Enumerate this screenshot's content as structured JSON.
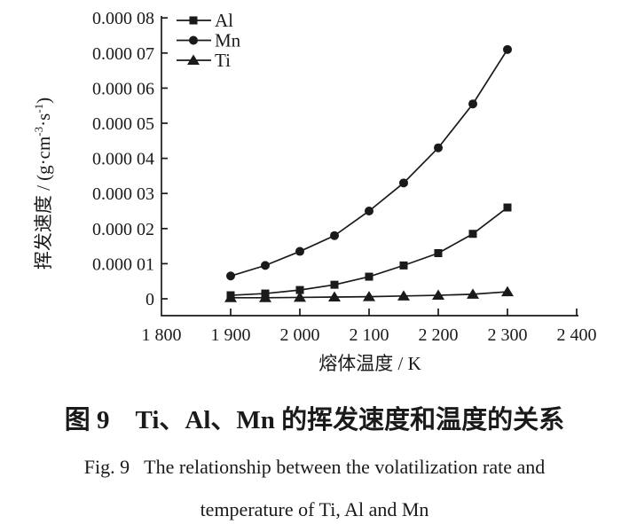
{
  "figure": {
    "caption_cn": "图 9　Ti、Al、Mn 的挥发速度和温度的关系",
    "caption_en_line1": "Fig. 9   The relationship between the volatilization rate and",
    "caption_en_line2": "temperature of Ti, Al and Mn"
  },
  "axes": {
    "x_title": "熔体温度 / K",
    "y_title_parts": {
      "p1": "挥发速度 / (g·cm",
      "sup1": "-3",
      "p2": "·s",
      "sup2": "-1",
      "p3": ")"
    }
  },
  "chart_data": {
    "type": "line",
    "title": "图 9 Ti、Al、Mn 的挥发速度和温度的关系",
    "xlabel": "熔体温度 / K",
    "ylabel": "挥发速度 / (g·cm⁻³·s⁻¹)",
    "x": [
      1900,
      1950,
      2000,
      2050,
      2100,
      2150,
      2200,
      2250,
      2300
    ],
    "series": [
      {
        "name": "Al",
        "marker": "square",
        "values": [
          1e-06,
          1.5e-06,
          2.5e-06,
          4e-06,
          6.3e-06,
          9.5e-06,
          1.3e-05,
          1.85e-05,
          2.6e-05
        ]
      },
      {
        "name": "Mn",
        "marker": "circle",
        "values": [
          6.5e-06,
          9.5e-06,
          1.35e-05,
          1.8e-05,
          2.5e-05,
          3.3e-05,
          4.3e-05,
          5.55e-05,
          7.1e-05
        ]
      },
      {
        "name": "Ti",
        "marker": "triangle",
        "values": [
          3e-07,
          3e-07,
          4e-07,
          5e-07,
          6e-07,
          8e-07,
          1e-06,
          1.3e-06,
          2e-06
        ]
      }
    ],
    "xlim": [
      1800,
      2400
    ],
    "ylim": [
      0,
      8e-05
    ],
    "x_ticks": [
      1800,
      1900,
      2000,
      2100,
      2200,
      2300,
      2400
    ],
    "x_tick_labels": [
      "1 800",
      "1 900",
      "2 000",
      "2 100",
      "2 200",
      "2 300",
      "2 400"
    ],
    "y_tick_step": 1e-05,
    "y_tick_labels": [
      "0",
      "0.000 01",
      "0.000 02",
      "0.000 03",
      "0.000 04",
      "0.000 05",
      "0.000 06",
      "0.000 07",
      "0.000 08"
    ],
    "legend_position": "top-left-inside",
    "legend_order": [
      "Al",
      "Mn",
      "Ti"
    ],
    "grid": false,
    "line_color": "#1a1a1a",
    "background_color": "#ffffff"
  }
}
